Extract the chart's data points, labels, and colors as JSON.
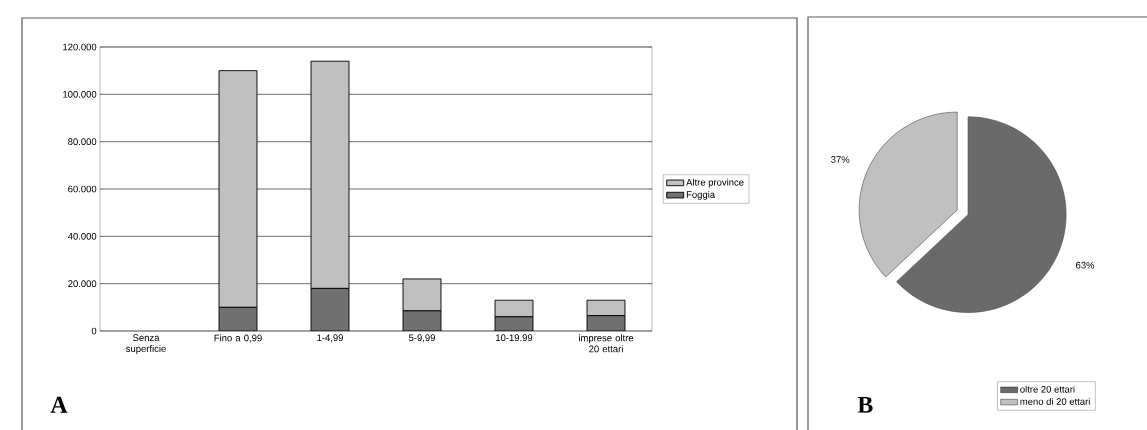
{
  "chart_data": [
    {
      "type": "bar",
      "stacked": true,
      "categories": [
        "Senza superficie",
        "Fino a 0,99",
        "1-4,99",
        "5-9,99",
        "10-19.99",
        "imprese oltre 20 ettari"
      ],
      "series": [
        {
          "name": "Foggia",
          "color": "#707070",
          "values": [
            0,
            10000,
            18000,
            8500,
            6000,
            6500
          ]
        },
        {
          "name": "Altre province",
          "color": "#c0c0c0",
          "values": [
            0,
            100000,
            96000,
            13500,
            7000,
            6500
          ]
        }
      ],
      "ylim": [
        0,
        120000
      ],
      "yticks": [
        {
          "value": 0,
          "label": "0"
        },
        {
          "value": 20000,
          "label": "20.000"
        },
        {
          "value": 40000,
          "label": "40.000"
        },
        {
          "value": 60000,
          "label": "60.000"
        },
        {
          "value": 80000,
          "label": "80.000"
        },
        {
          "value": 100000,
          "label": "100.000"
        },
        {
          "value": 120000,
          "label": "120.000"
        }
      ],
      "grid": "y",
      "legend": "right",
      "annotations": [
        "A"
      ]
    },
    {
      "type": "pie",
      "categories": [
        "oltre 20 ettari",
        "meno di 20 ettari"
      ],
      "values": [
        63,
        37
      ],
      "colors": [
        "#6a6a6a",
        "#c0c0c0"
      ],
      "value_labels": [
        "63%",
        "37%"
      ],
      "legend": "bottom right",
      "annotations": [
        "B"
      ]
    }
  ]
}
